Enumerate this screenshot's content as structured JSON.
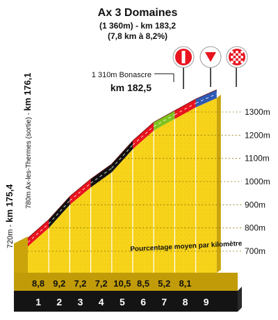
{
  "header": {
    "title": "Ax 3 Domaines",
    "altitude_km": "(1 360m) - km 183,2",
    "climb_stats": "(7,8 km à 8,2%)"
  },
  "start_labels": {
    "alt": "720m -",
    "km": "km 175,4",
    "place_prefix": "780m Ax-les-Thermes (sortie) - ",
    "place_km": "km 176,1"
  },
  "intermediate": {
    "name": "1 310m Bonascre",
    "km": "km 182,5"
  },
  "markers": [
    {
      "name": "category-marker",
      "icon": "hors-category-bar"
    },
    {
      "name": "last-km-marker",
      "icon": "red-triangle"
    },
    {
      "name": "finish-marker",
      "icon": "checkered-flag"
    }
  ],
  "altitude_axis": [
    "1300m",
    "1200m",
    "1100m",
    "1000m",
    "900m",
    "800m",
    "700m"
  ],
  "km_numbers": [
    "1",
    "2",
    "3",
    "4",
    "5",
    "6",
    "7",
    "8",
    "9"
  ],
  "gradients": [
    "8,8",
    "9,2",
    "7,2",
    "7,2",
    "10,5",
    "8,5",
    "5,2",
    "8,1"
  ],
  "gradient_note": "Pourcentage moyen par kilomètre",
  "chart_data": {
    "type": "area",
    "x": [
      0,
      1,
      2,
      3,
      4,
      5,
      6,
      7,
      8,
      9
    ],
    "altitude_m": [
      720,
      800,
      900,
      975,
      1040,
      1140,
      1220,
      1270,
      1320,
      1360
    ],
    "segment_gradients_pct": [
      8.8,
      9.2,
      7.2,
      7.2,
      10.5,
      8.5,
      5.2,
      8.1
    ],
    "segment_colors": [
      "#e8141e",
      "#e8141e",
      "#111111",
      "#111111",
      "#e8141e",
      "#e8141e",
      "#7fc31f",
      "#e8141e",
      "#2f5bb5"
    ],
    "ylim": [
      700,
      1300
    ],
    "colors": {
      "face": "#f7d31a",
      "side": "#caa40a",
      "base": "#141414",
      "road_red": "#e8141e",
      "road_black": "#111111",
      "road_green": "#7fc31f",
      "road_blue": "#2f5bb5"
    }
  }
}
